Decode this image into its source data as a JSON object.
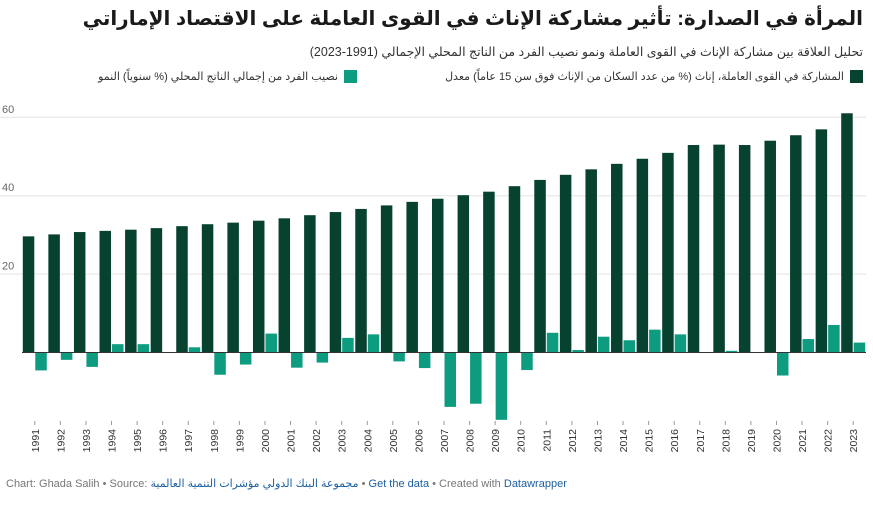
{
  "title": "المرأة في الصدارة: تأثير مشاركة الإناث في القوى العاملة على الاقتصاد الإماراتي",
  "subtitle": "تحليل العلاقة بين مشاركة الإناث في القوى العاملة ونمو نصيب الفرد من الناتج المحلي الإجمالي (1991-2023)",
  "colors": {
    "participation": "#07412f",
    "growth": "#0d9c80",
    "grid": "#e3e3e3",
    "axis": "#333333"
  },
  "chart_data": {
    "type": "bar",
    "categories": [
      "1991",
      "1992",
      "1993",
      "1994",
      "1995",
      "1996",
      "1997",
      "1998",
      "1999",
      "2000",
      "2001",
      "2002",
      "2003",
      "2004",
      "2005",
      "2006",
      "2007",
      "2008",
      "2009",
      "2010",
      "2011",
      "2012",
      "2013",
      "2014",
      "2015",
      "2016",
      "2017",
      "2018",
      "2019",
      "2020",
      "2021",
      "2022",
      "2023"
    ],
    "series": [
      {
        "name": "المشاركة في القوى العاملة، إناث (% من عدد السكان من الإناث فوق سن 15 عاماً) معدل",
        "values": [
          29.5,
          30.0,
          30.6,
          30.9,
          31.2,
          31.6,
          32.1,
          32.6,
          33.0,
          33.5,
          34.1,
          34.9,
          35.7,
          36.5,
          37.4,
          38.3,
          39.1,
          40.0,
          40.9,
          42.3,
          43.9,
          45.2,
          46.6,
          48.0,
          49.3,
          50.8,
          52.8,
          52.9,
          52.8,
          53.9,
          55.3,
          56.8,
          60.9
        ]
      },
      {
        "name": "نصيب الفرد من إجمالي الناتج المحلي (% سنوياً) النمو",
        "values": [
          -4.7,
          -2.0,
          -3.8,
          2.0,
          2.0,
          0,
          1.2,
          -5.8,
          -3.2,
          4.7,
          -4.0,
          -2.7,
          3.6,
          4.5,
          -2.4,
          -4.1,
          -14.0,
          -13.2,
          -17.3,
          -4.6,
          4.9,
          0.5,
          3.9,
          3.0,
          5.7,
          4.5,
          0,
          0.3,
          0,
          -6.0,
          3.3,
          6.9,
          2.4
        ]
      }
    ],
    "yticks": [
      20,
      40,
      60
    ],
    "ylim": [
      -18.5,
      62
    ]
  },
  "footer": {
    "chart_label": "Chart: Ghada Salih",
    "source_label": "Source:",
    "source_link": "مجموعة البنك الدولي مؤشرات التنمية العالمية",
    "get_data": "Get the data",
    "created_with": "Created with",
    "tool": "Datawrapper",
    "sep": "•"
  }
}
